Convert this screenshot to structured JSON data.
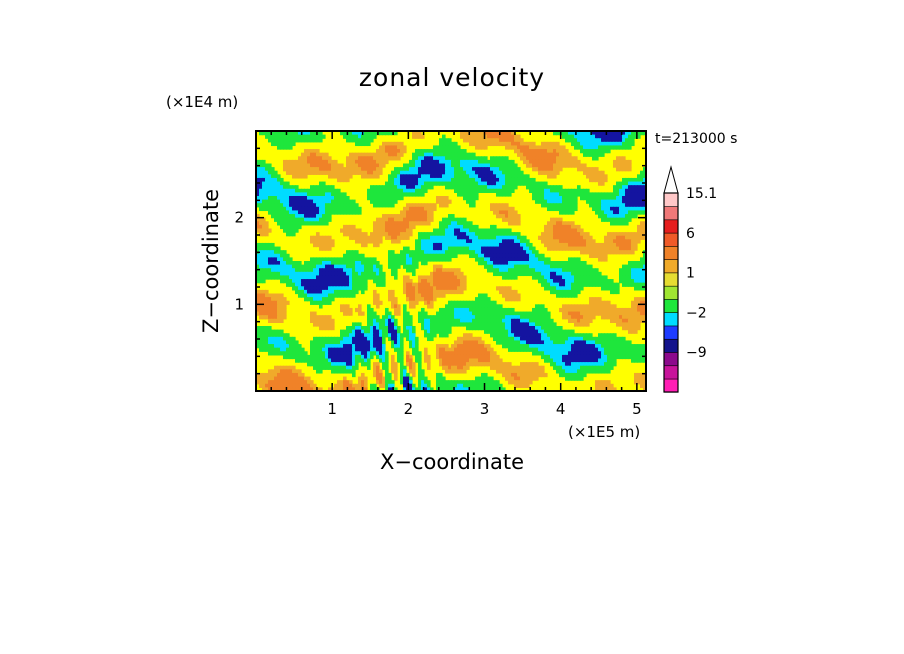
{
  "chart_data": {
    "type": "heatmap",
    "title": "zonal velocity",
    "xlabel": "X−coordinate",
    "ylabel": "Z−coordinate",
    "x_unit": "(×1E5 m)",
    "y_unit": "(×1E4 m)",
    "time_label": "t=213000 s",
    "x_ticks": [
      "1",
      "2",
      "3",
      "4",
      "5"
    ],
    "y_ticks": [
      "1",
      "2"
    ],
    "x_tick_values": [
      1,
      2,
      3,
      4,
      5
    ],
    "y_tick_values": [
      1,
      2
    ],
    "xlim": [
      0,
      5.12
    ],
    "ylim": [
      0,
      3.0
    ],
    "colorbar": {
      "levels": [
        -15,
        -12,
        -9,
        -6,
        -3,
        -2,
        -1,
        0,
        1,
        2,
        3,
        6,
        9,
        12,
        15.1
      ],
      "colors": [
        "#ff1eb4",
        "#c8149b",
        "#8c0a8c",
        "#14148c",
        "#1e3cff",
        "#00dcff",
        "#1ee63c",
        "#a0e632",
        "#e6dc32",
        "#f0aa2a",
        "#f08228",
        "#f05a28",
        "#e61e1e",
        "#f07878",
        "#ffc8c8"
      ],
      "labels": [
        {
          "text": "15.1",
          "value": 15.1
        },
        {
          "text": "6",
          "value": 6
        },
        {
          "text": "1",
          "value": 1
        },
        {
          "text": "−2",
          "value": -2
        },
        {
          "text": "−9",
          "value": -9
        }
      ],
      "overflow_color": "#ffffff"
    },
    "field_palette": {
      "strong_neg": "#1414a0",
      "neg": "#00dcff",
      "weak_neg": "#1ee63c",
      "near_zero": "#ffff00",
      "weak_pos": "#f0aa2a",
      "pos": "#f08228"
    }
  }
}
